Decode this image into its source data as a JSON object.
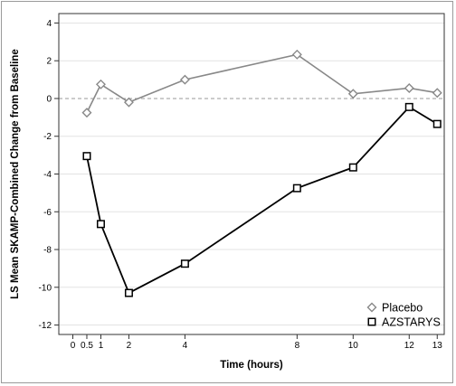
{
  "chart_data": {
    "type": "line",
    "title": "",
    "xlabel": "Time (hours)",
    "ylabel": "LS Mean SKAMP-Combined Change from Baseline",
    "xlim": [
      -0.5,
      13.25
    ],
    "ylim": [
      -12.5,
      4.5
    ],
    "x_ticks": [
      0,
      0.5,
      1,
      2,
      4,
      8,
      10,
      12,
      13
    ],
    "x_tick_labels": [
      "0",
      "0.5",
      "1",
      "2",
      "4",
      "8",
      "10",
      "12",
      "13"
    ],
    "y_ticks": [
      -12,
      -10,
      -8,
      -6,
      -4,
      -2,
      0,
      2,
      4
    ],
    "y_tick_labels": [
      "-12",
      "-10",
      "-8",
      "-6",
      "-4",
      "-2",
      "0",
      "2",
      "4"
    ],
    "grid": true,
    "reference_line": 0,
    "legend_position": "bottom-right",
    "series": [
      {
        "name": "Placebo",
        "marker": "diamond",
        "color": "#888888",
        "x": [
          0.5,
          1,
          2,
          4,
          8,
          10,
          12,
          13
        ],
        "y": [
          -0.75,
          0.75,
          -0.2,
          1.0,
          2.33,
          0.25,
          0.55,
          0.3
        ]
      },
      {
        "name": "AZSTARYS",
        "marker": "square",
        "color": "#000000",
        "x": [
          0.5,
          1,
          2,
          4,
          8,
          10,
          12,
          13
        ],
        "y": [
          -3.05,
          -6.65,
          -10.3,
          -8.75,
          -4.75,
          -3.65,
          -0.45,
          -1.35
        ]
      }
    ]
  }
}
